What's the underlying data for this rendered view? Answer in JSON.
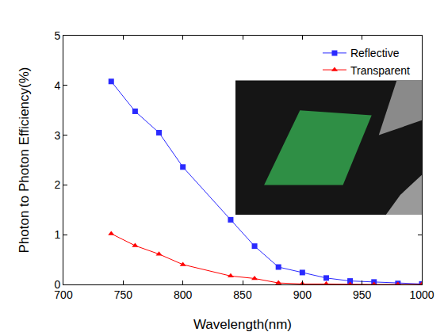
{
  "chart_data": {
    "type": "line",
    "x_label": "Wavelength(nm)",
    "y_label": "Photon to Photon Efficiency(%)",
    "xlim": [
      700,
      1000
    ],
    "xticks": [
      700,
      750,
      800,
      850,
      900,
      950,
      1000
    ],
    "ylim": [
      0,
      5
    ],
    "yticks": [
      0,
      1,
      2,
      3,
      4,
      5
    ],
    "grid": false,
    "legend": "top right",
    "series": [
      {
        "name": "Reflective",
        "color": "#2a2aff",
        "marker": "square",
        "line_style": "solid",
        "x": [
          740,
          760,
          780,
          800,
          840,
          860,
          880,
          900,
          920,
          940,
          960,
          980,
          1000
        ],
        "values": [
          4.08,
          3.48,
          3.05,
          2.36,
          1.3,
          0.77,
          0.35,
          0.24,
          0.13,
          0.07,
          0.05,
          0.02,
          0.01
        ]
      },
      {
        "name": "Transparent",
        "color": "#ff0000",
        "marker": "triangle-up",
        "line_style": "solid",
        "x": [
          740,
          760,
          780,
          800,
          840,
          860,
          880,
          900,
          920,
          940,
          960,
          980,
          1000
        ],
        "values": [
          1.02,
          0.78,
          0.61,
          0.4,
          0.17,
          0.12,
          0.03,
          0.01,
          0.01,
          0.0,
          0.0,
          0.0,
          0.0
        ]
      }
    ]
  }
}
